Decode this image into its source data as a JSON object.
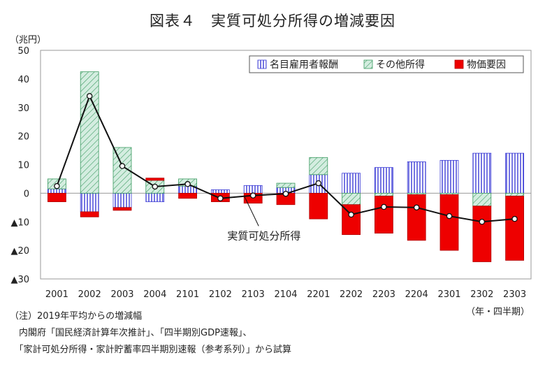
{
  "title": "図表４　実質可処分所得の増減要因",
  "unit": "（兆円）",
  "period_label": "（年・四半期）",
  "notes": [
    "（注）2019年平均からの増減幅",
    "　内閣府「国民経済計算年次推計」、「四半期別GDP速報」、",
    "　「家計可処分所得・家計貯蓄率四半期別速報（参考系列）」から試算"
  ],
  "colors": {
    "wages": "#3b3bd6",
    "other": "#3a9a60",
    "other_fill": "#d4ede0",
    "price": "#ee0000",
    "line": "#111111"
  },
  "chart_data": {
    "type": "bar",
    "stacked": true,
    "title": "図表４　実質可処分所得の増減要因",
    "ylim": [
      -30,
      50
    ],
    "yticks": [
      50,
      40,
      30,
      20,
      10,
      0,
      -10,
      -20,
      -30
    ],
    "ytick_labels": [
      "50",
      "40",
      "30",
      "20",
      "10",
      "0",
      "▲10",
      "▲20",
      "▲30"
    ],
    "categories": [
      "2001",
      "2002",
      "2003",
      "2004",
      "2101",
      "2102",
      "2103",
      "2104",
      "2201",
      "2202",
      "2203",
      "2204",
      "2301",
      "2302",
      "2303"
    ],
    "series": [
      {
        "name": "名目雇用者報酬",
        "kind": "bar",
        "pattern": "vertical-stripes",
        "values": [
          1.5,
          -6.5,
          -5.0,
          -3.0,
          2.5,
          1.2,
          2.7,
          2.0,
          6.5,
          7.0,
          9.0,
          11.0,
          11.5,
          14.0,
          14.0
        ]
      },
      {
        "name": "その他所得",
        "kind": "bar",
        "pattern": "diagonal-hatch",
        "values": [
          3.5,
          42.5,
          16.0,
          4.5,
          2.5,
          0.0,
          0.0,
          1.5,
          6.0,
          -4.0,
          -1.0,
          -0.5,
          -0.5,
          -4.5,
          -1.0
        ]
      },
      {
        "name": "物価要因",
        "kind": "bar",
        "pattern": "solid",
        "values": [
          -3.0,
          -1.8,
          -1.0,
          0.8,
          -1.8,
          -3.0,
          -3.5,
          -4.0,
          -9.0,
          -10.5,
          -13.0,
          -16.0,
          -19.5,
          -19.5,
          -22.5
        ]
      },
      {
        "name": "実質可処分所得",
        "kind": "line",
        "values": [
          2.5,
          34.0,
          9.5,
          2.3,
          3.2,
          -1.8,
          -0.8,
          -0.2,
          3.5,
          -7.5,
          -4.8,
          -5.0,
          -8.0,
          -10.0,
          -9.0
        ]
      }
    ],
    "legend": [
      "名目雇用者報酬",
      "その他所得",
      "物価要因"
    ],
    "legend_position": "top-right",
    "annotation": "実質可処分所得",
    "grid": false
  }
}
